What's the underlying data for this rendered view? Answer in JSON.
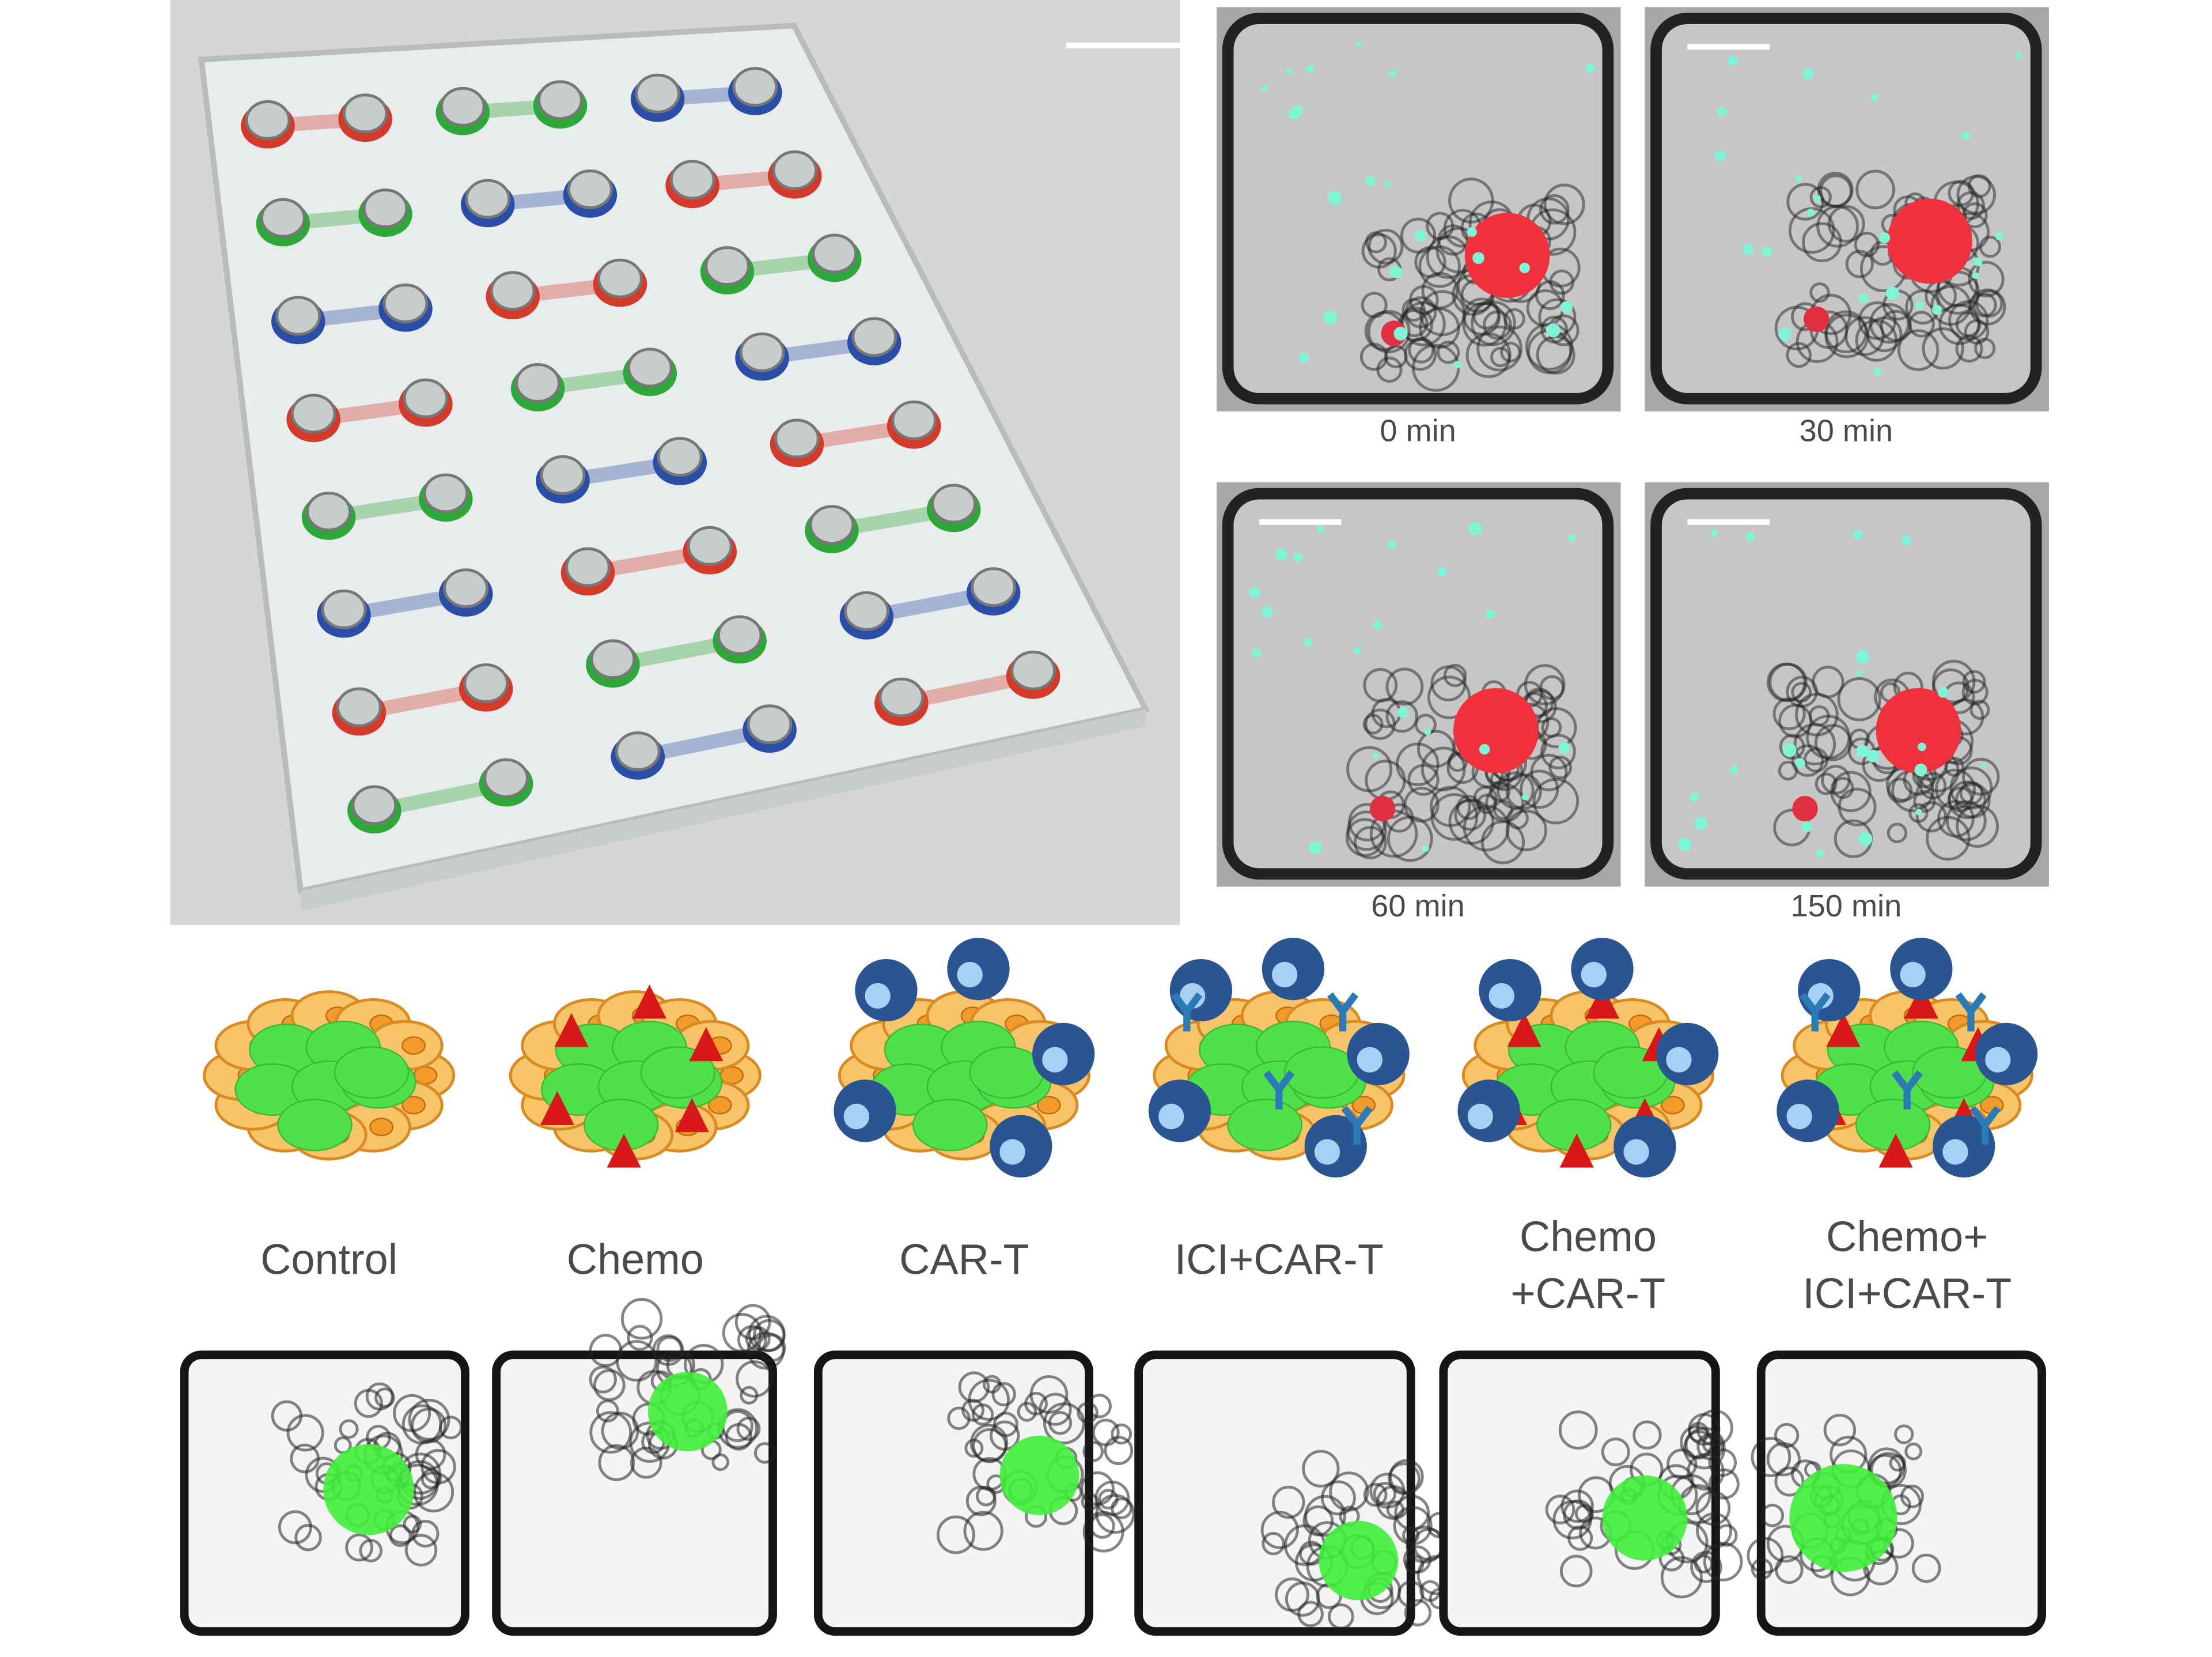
{
  "top_panels": {
    "time_labels": [
      "0 min",
      "30 min",
      "60 min",
      "150 min"
    ]
  },
  "conditions": [
    {
      "label": [
        "Control"
      ]
    },
    {
      "label": [
        "Chemo"
      ]
    },
    {
      "label": [
        "CAR-T"
      ]
    },
    {
      "label": [
        "ICI+CAR-T"
      ]
    },
    {
      "label": [
        "Chemo",
        "+CAR-T"
      ]
    },
    {
      "label": [
        "Chemo+",
        "ICI+CAR-T"
      ]
    }
  ]
}
